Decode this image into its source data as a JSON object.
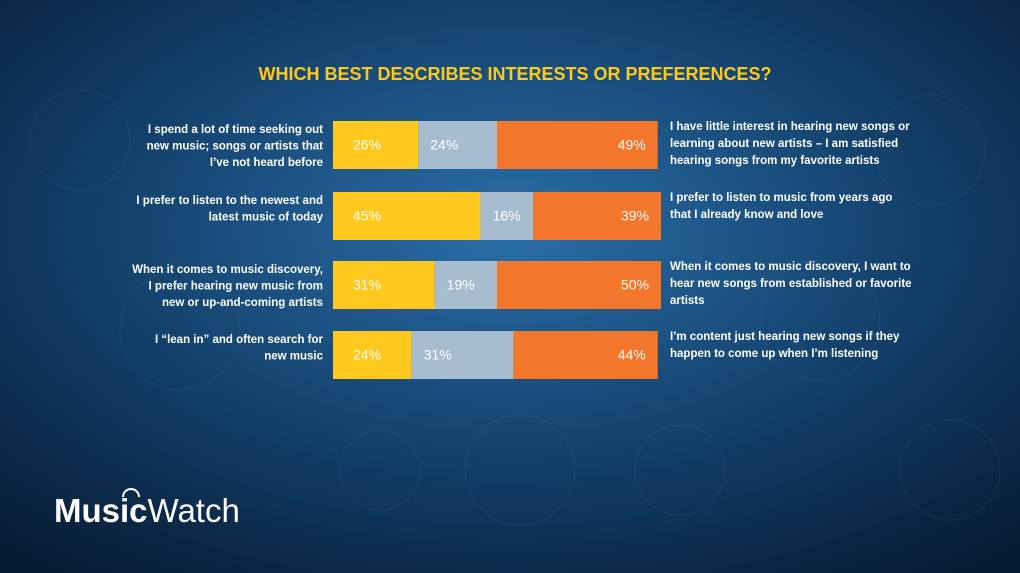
{
  "title": "WHICH BEST DESCRIBES INTERESTS OR PREFERENCES?",
  "chart_data": {
    "type": "bar",
    "orientation": "horizontal",
    "stacked": true,
    "categories": [
      [
        "I spend a lot of time seeking out",
        "new music; songs or artists that",
        "I’ve not heard before"
      ],
      [
        "I prefer to listen to the newest and",
        "latest music of today"
      ],
      [
        "When it comes to music discovery,",
        "I prefer hearing new music from",
        "new or up-and-coming artists"
      ],
      [
        "I “lean in” and often search for",
        "new music"
      ]
    ],
    "right_labels": [
      [
        "I have little interest in hearing new songs or",
        "learning about new artists – I am satisfied",
        "hearing songs from my favorite artists"
      ],
      [
        "I prefer to listen to music from years ago",
        "that I already know and love"
      ],
      [
        "When it comes to music discovery, I want to",
        "hear new songs from established or favorite",
        "artists"
      ],
      [
        "I’m content just hearing new songs if they",
        "happen to come up when I’m listening"
      ]
    ],
    "xlim": [
      0,
      100
    ],
    "series": [
      {
        "color": "#FFC81E",
        "values": [
          26,
          45,
          31,
          24
        ],
        "value_labels": [
          "26%",
          "45%",
          "31%",
          "24%"
        ]
      },
      {
        "color": "#A8BCD0",
        "values": [
          24,
          16,
          19,
          31
        ],
        "value_labels": [
          "24%",
          "16%",
          "19%",
          "31%"
        ]
      },
      {
        "color": "#F2762B",
        "values": [
          49,
          39,
          50,
          44
        ],
        "value_labels": [
          "49%",
          "39%",
          "50%",
          "44%"
        ]
      }
    ]
  },
  "logo": {
    "bold": "Music",
    "light": "Watch"
  }
}
